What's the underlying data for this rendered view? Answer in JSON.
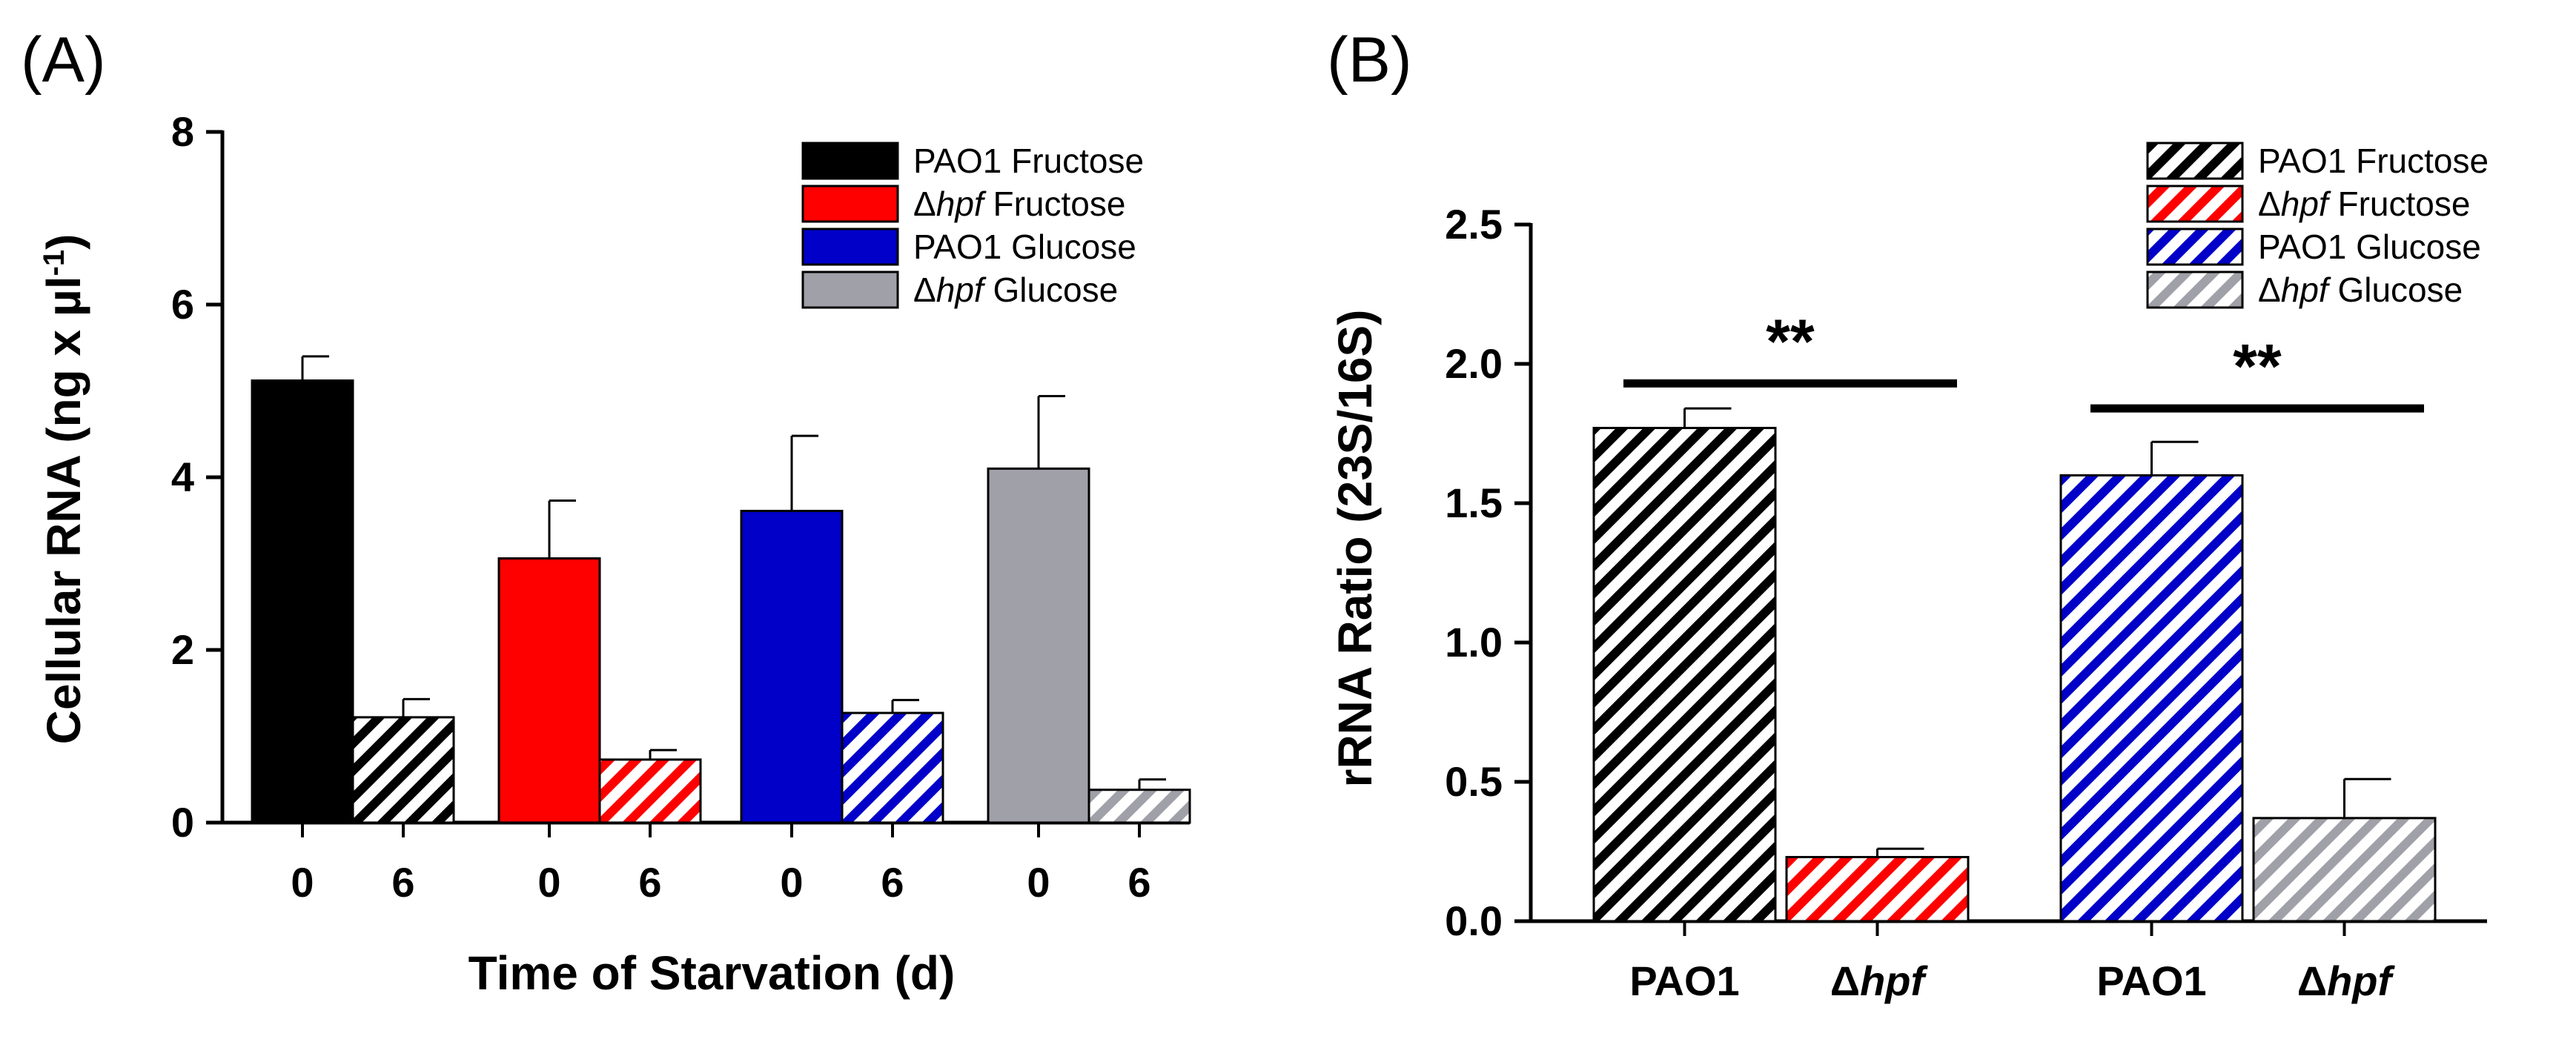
{
  "chart_data": [
    {
      "panel_label": "(A)",
      "type": "bar",
      "ylabel": "Cellular RNA (ng x µl",
      "ylabel_sup": "-1",
      "ylabel_end": ")",
      "xlabel": "Time of Starvation (d)",
      "ylim": [
        0,
        8
      ],
      "yticks": [
        "0",
        "2",
        "4",
        "6",
        "8"
      ],
      "legend_position": "top-right",
      "series": [
        {
          "name": "PAO1 Fructose",
          "prefix": "",
          "italic": "",
          "suffix": "PAO1 Fructose",
          "color": "#000000",
          "categories": [
            "0",
            "6"
          ],
          "values": [
            5.12,
            1.22
          ],
          "errors": [
            0.28,
            0.21
          ]
        },
        {
          "name": "Δhpf Fructose",
          "prefix": "Δ",
          "italic": "hpf",
          "suffix": " Fructose",
          "color": "#ff0000",
          "categories": [
            "0",
            "6"
          ],
          "values": [
            3.06,
            0.73
          ],
          "errors": [
            0.67,
            0.11
          ]
        },
        {
          "name": "PAO1 Glucose",
          "prefix": "",
          "italic": "",
          "suffix": "PAO1 Glucose",
          "color": "#0000c8",
          "categories": [
            "0",
            "6"
          ],
          "values": [
            3.61,
            1.27
          ],
          "errors": [
            0.87,
            0.15
          ]
        },
        {
          "name": "Δhpf Glucose",
          "prefix": "Δ",
          "italic": "hpf",
          "suffix": " Glucose",
          "color": "#a0a0a8",
          "categories": [
            "0",
            "6"
          ],
          "values": [
            4.1,
            0.38
          ],
          "errors": [
            0.84,
            0.12
          ]
        }
      ],
      "pattern_note": "day 0 solid, day 6 hatched"
    },
    {
      "panel_label": "(B)",
      "type": "bar",
      "ylabel": "rRNA Ratio (23S/16S)",
      "ylim": [
        0,
        2.5
      ],
      "yticks": [
        "0.0",
        "0.5",
        "1.0",
        "1.5",
        "2.0",
        "2.5"
      ],
      "legend_position": "top-right",
      "categories": [
        {
          "prefix": "",
          "italic": "",
          "text": "PAO1"
        },
        {
          "prefix": "Δ",
          "italic": "hpf",
          "text": ""
        },
        {
          "prefix": "",
          "italic": "",
          "text": "PAO1"
        },
        {
          "prefix": "Δ",
          "italic": "hpf",
          "text": ""
        }
      ],
      "series": [
        {
          "name": "PAO1 Fructose",
          "prefix": "",
          "italic": "",
          "suffix": "PAO1 Fructose",
          "color": "#000000",
          "value": 1.77,
          "error": 0.07
        },
        {
          "name": "Δhpf Fructose",
          "prefix": "Δ",
          "italic": "hpf",
          "suffix": " Fructose",
          "color": "#ff0000",
          "value": 0.23,
          "error": 0.03
        },
        {
          "name": "PAO1 Glucose",
          "prefix": "",
          "italic": "",
          "suffix": "PAO1 Glucose",
          "color": "#0000c8",
          "value": 1.6,
          "error": 0.12
        },
        {
          "name": "Δhpf Glucose",
          "prefix": "Δ",
          "italic": "hpf",
          "suffix": " Glucose",
          "color": "#a0a0a8",
          "value": 0.37,
          "error": 0.14
        }
      ],
      "significance": [
        {
          "label": "**",
          "from": 0,
          "to": 1,
          "y": 1.93
        },
        {
          "label": "**",
          "from": 2,
          "to": 3,
          "y": 1.84
        }
      ]
    }
  ]
}
